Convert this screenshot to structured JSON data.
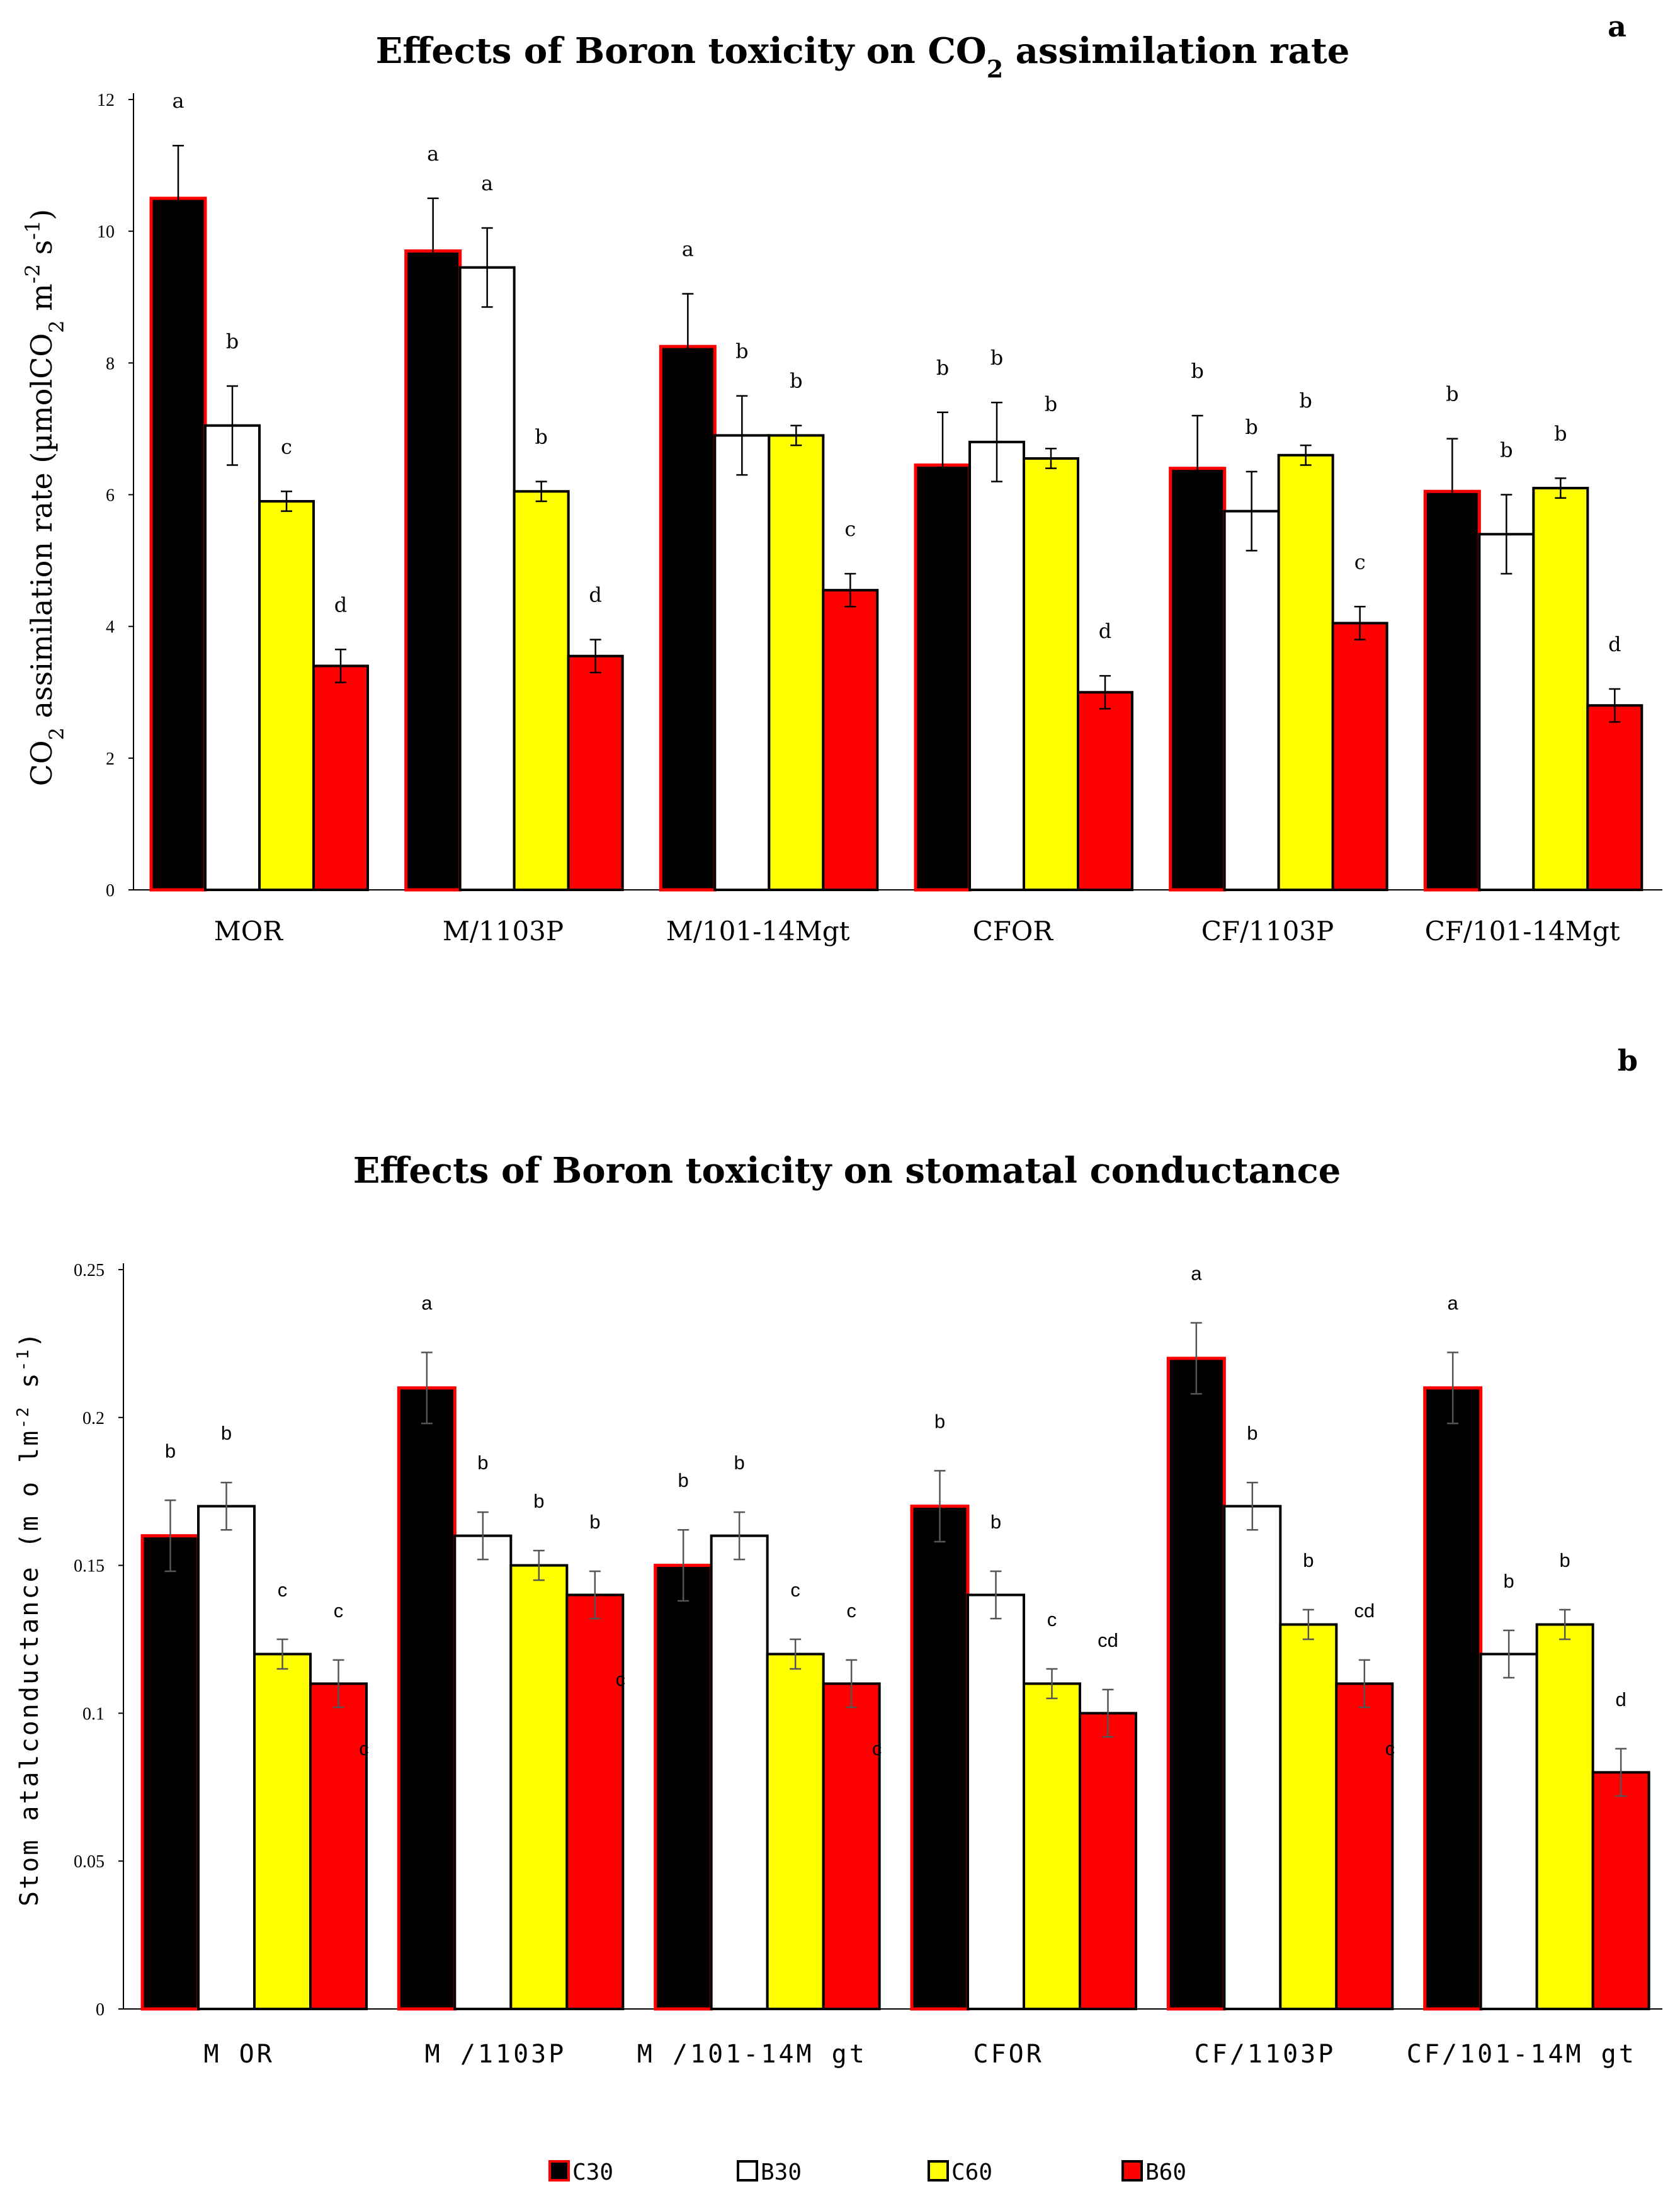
{
  "chart_data": [
    {
      "type": "bar",
      "panel_label": "a",
      "title": "Effects of Boron toxicity on CO",
      "title_sub": "2",
      "title_tail": " assimilation rate",
      "ylabel": "CO",
      "ylabel_sub": "2",
      "ylabel_tail": " assimilation rate  (µmolCO",
      "ylabel_sub2": "2",
      "ylabel_unit_mid": "  m",
      "ylabel_sup1": "-2",
      "ylabel_unit_s": " s",
      "ylabel_sup2": "-1",
      "ylabel_close": ")",
      "ylim": [
        0,
        12
      ],
      "yticks": [
        "0",
        "2",
        "4",
        "6",
        "8",
        "10",
        "12"
      ],
      "categories": [
        "MOR",
        "M/1103P",
        "M/101-14Mgt",
        "CFOR",
        "CF/1103P",
        "CF/101-14Mgt"
      ],
      "series": [
        {
          "name": "C30",
          "values": [
            10.5,
            9.7,
            8.25,
            6.45,
            6.4,
            6.05
          ],
          "errors": [
            0.8,
            0.8,
            0.8,
            0.8,
            0.8,
            0.8
          ],
          "letters": [
            "a",
            "a",
            "a",
            "b",
            "b",
            "b"
          ]
        },
        {
          "name": "B30",
          "values": [
            7.05,
            9.45,
            6.9,
            6.8,
            5.75,
            5.4
          ],
          "errors": [
            0.6,
            0.6,
            0.6,
            0.6,
            0.6,
            0.6
          ],
          "letters": [
            "b",
            "a",
            "b",
            "b",
            "b",
            "b"
          ]
        },
        {
          "name": "C60",
          "values": [
            5.9,
            6.05,
            6.9,
            6.55,
            6.6,
            6.1
          ],
          "errors": [
            0.15,
            0.15,
            0.15,
            0.15,
            0.15,
            0.15
          ],
          "letters": [
            "c",
            "b",
            "b",
            "b",
            "b",
            "b"
          ]
        },
        {
          "name": "B60",
          "values": [
            3.4,
            3.55,
            4.55,
            3.0,
            4.05,
            2.8
          ],
          "errors": [
            0.25,
            0.25,
            0.25,
            0.25,
            0.25,
            0.25
          ],
          "letters": [
            "d",
            "d",
            "c",
            "d",
            "c",
            "d"
          ]
        }
      ]
    },
    {
      "type": "bar",
      "panel_label": "b",
      "title": "Effects of Boron toxicity on stomatal conductance",
      "ylabel": "Stom atalconductance (m o lm",
      "ylabel_sup1": "-2",
      "ylabel_unit_s": " s",
      "ylabel_sup2": "-1",
      "ylabel_close": ")",
      "ylim": [
        0,
        0.25
      ],
      "yticks": [
        "0",
        "0.05",
        "0.1",
        "0.15",
        "0.2",
        "0.25"
      ],
      "categories": [
        "M OR",
        "M /1103P",
        "M /101-14M gt",
        "CFOR",
        "CF/1103P",
        "CF/101-14M gt"
      ],
      "series": [
        {
          "name": "C30",
          "values": [
            0.16,
            0.21,
            0.15,
            0.17,
            0.22,
            0.21
          ],
          "errors": [
            0.012,
            0.012,
            0.012,
            0.012,
            0.012,
            0.012
          ],
          "letters": [
            "b",
            "a",
            "b",
            "b",
            "a",
            "a"
          ]
        },
        {
          "name": "B30",
          "values": [
            0.17,
            0.16,
            0.16,
            0.14,
            0.17,
            0.12
          ],
          "errors": [
            0.008,
            0.008,
            0.008,
            0.008,
            0.008,
            0.008
          ],
          "letters": [
            "b",
            "b",
            "b",
            "b",
            "b",
            "b"
          ]
        },
        {
          "name": "C60",
          "values": [
            0.12,
            0.15,
            0.12,
            0.11,
            0.13,
            0.13
          ],
          "errors": [
            0.005,
            0.005,
            0.005,
            0.005,
            0.005,
            0.005
          ],
          "letters": [
            "c",
            "b",
            "c",
            "c",
            "b",
            "b"
          ]
        },
        {
          "name": "B60",
          "values": [
            0.11,
            0.14,
            0.11,
            0.1,
            0.11,
            0.08
          ],
          "errors": [
            0.008,
            0.008,
            0.008,
            0.008,
            0.008,
            0.008
          ],
          "letters": [
            "c",
            "b",
            "c",
            "cd",
            "cd",
            "d"
          ]
        }
      ],
      "stray_letters": [
        "c",
        "c",
        "c",
        "c"
      ]
    }
  ],
  "legend": {
    "items": [
      {
        "label": "C30",
        "fill": "#000000"
      },
      {
        "label": "B30",
        "fill": "#ffffff"
      },
      {
        "label": "C60",
        "fill": "#ffff00"
      },
      {
        "label": "B60",
        "fill": "#ff0000"
      }
    ]
  },
  "colors": {
    "C30": "#000000",
    "B30": "#ffffff",
    "C60": "#ffff00",
    "B60": "#ff0000",
    "highlight_border": "#ff0000"
  }
}
